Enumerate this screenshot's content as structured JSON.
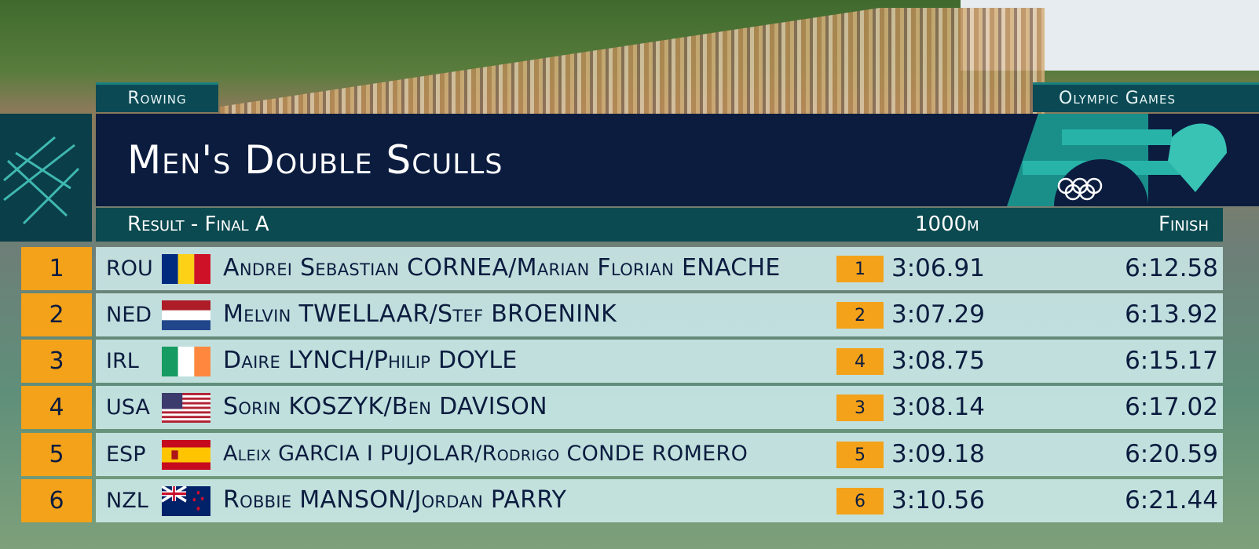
{
  "header": {
    "sport": "Rowing",
    "brand": "Olympic Games",
    "title": "Men's Double Sculls",
    "round": "Result - Final A",
    "split_label": "1000m",
    "finish_label": "Finish"
  },
  "table": {
    "rows": [
      {
        "rank": 1,
        "country": "ROU",
        "crew": "Andrei Sebastian CORNEA/Marian Florian ENACHE",
        "split_rank": 1,
        "split_time": "3:06.91",
        "finish_time": "6:12.58"
      },
      {
        "rank": 2,
        "country": "NED",
        "crew": "Melvin TWELLAAR/Stef BROENINK",
        "split_rank": 2,
        "split_time": "3:07.29",
        "finish_time": "6:13.92"
      },
      {
        "rank": 3,
        "country": "IRL",
        "crew": "Daire LYNCH/Philip DOYLE",
        "split_rank": 4,
        "split_time": "3:08.75",
        "finish_time": "6:15.17"
      },
      {
        "rank": 4,
        "country": "USA",
        "crew": "Sorin KOSZYK/Ben DAVISON",
        "split_rank": 3,
        "split_time": "3:08.14",
        "finish_time": "6:17.02"
      },
      {
        "rank": 5,
        "country": "ESP",
        "crew": "Aleix GARCIA I PUJOLAR/Rodrigo CONDE ROMERO",
        "split_rank": 5,
        "split_time": "3:09.18",
        "finish_time": "6:20.59"
      },
      {
        "rank": 6,
        "country": "NZL",
        "crew": "Robbie MANSON/Jordan PARRY",
        "split_rank": 6,
        "split_time": "3:10.56",
        "finish_time": "6:21.44"
      }
    ]
  }
}
